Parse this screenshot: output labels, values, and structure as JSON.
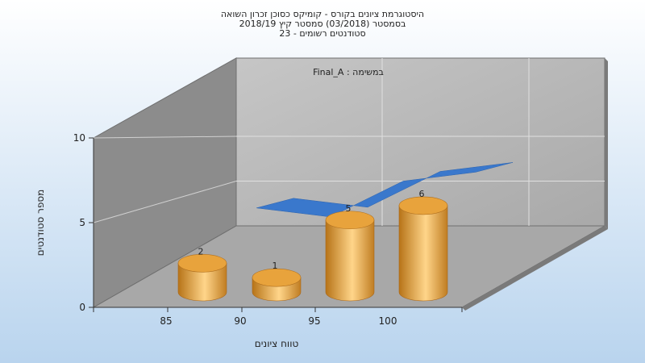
{
  "chart_data": {
    "type": "bar",
    "title": [
      "היסטוגרמת ציונים בקורס - קומיקס כסוכן זכרון השואה",
      "בסמסטר  (03/2018)  סמסטר קיץ  2018/19",
      "סטודנטים רשומים - 23"
    ],
    "annotation": "במשימה : Final_A",
    "xlabel": "טווח ציונים",
    "ylabel": "מספר סטודנטים",
    "x_ticks": [
      "85",
      "90",
      "95",
      "100"
    ],
    "y_ticks": [
      "0",
      "5",
      "10"
    ],
    "ylim": [
      0,
      10
    ],
    "categories": [
      "85-90",
      "90-95",
      "95-100",
      "100"
    ],
    "values": [
      2,
      1,
      5,
      6
    ],
    "value_labels": [
      "2",
      "1",
      "5",
      "6"
    ],
    "trend_values": [
      2,
      1,
      5,
      6
    ],
    "colors": {
      "bar": "#e8a33c",
      "trend": "#3a78cc",
      "wall": "#b4b4b4",
      "side_wall": "#8c8c8c",
      "floor": "#a8a8a8"
    }
  }
}
